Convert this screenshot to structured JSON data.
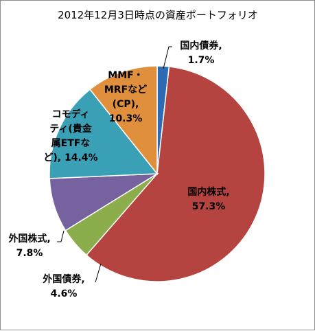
{
  "chart_data": {
    "type": "pie",
    "title": "2012年12月3日時点の資産ポートフォリオ",
    "slices": [
      {
        "name": "国内債券",
        "value": 1.7,
        "value_label": "1.7%",
        "color": "#2e6bb5",
        "label_lines": [
          "国内債券,",
          "1.7%"
        ]
      },
      {
        "name": "国内株式",
        "value": 57.3,
        "value_label": "57.3%",
        "color": "#b54441",
        "label_lines": [
          "国内株式,",
          "57.3%"
        ]
      },
      {
        "name": "外国債券",
        "value": 4.6,
        "value_label": "4.6%",
        "color": "#8cad4b",
        "label_lines": [
          "外国債券,",
          "4.6%"
        ]
      },
      {
        "name": "外国株式",
        "value": 7.8,
        "value_label": "7.8%",
        "color": "#7762a0",
        "label_lines": [
          "外国株式,",
          "7.8%"
        ]
      },
      {
        "name": "コモディティ(貴金属ETFなど)",
        "value": 14.4,
        "value_label": "14.4%",
        "color": "#3aa0b6",
        "label_lines": [
          "コモディ",
          "ティ(貴金",
          "属ETFな",
          "ど), 14.4%"
        ]
      },
      {
        "name": "MMF・MRFなど(CP)",
        "value": 10.3,
        "value_label": "10.3%",
        "color": "#e08f3d",
        "label_lines": [
          "MMF・",
          "MRFなど",
          "(CP),",
          "10.3%"
        ]
      }
    ],
    "start_angle": "12 o'clock",
    "direction": "clockwise",
    "legend": "none"
  }
}
